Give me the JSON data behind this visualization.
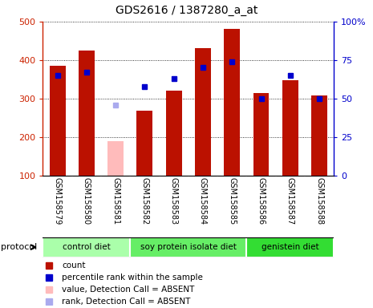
{
  "title": "GDS2616 / 1387280_a_at",
  "samples": [
    "GSM158579",
    "GSM158580",
    "GSM158581",
    "GSM158582",
    "GSM158583",
    "GSM158584",
    "GSM158585",
    "GSM158586",
    "GSM158587",
    "GSM158588"
  ],
  "counts": [
    385,
    425,
    190,
    268,
    320,
    432,
    481,
    315,
    348,
    308
  ],
  "ranks": [
    65,
    67,
    null,
    58,
    63,
    70,
    74,
    50,
    65,
    50
  ],
  "absent_count": [
    null,
    null,
    190,
    null,
    null,
    null,
    null,
    null,
    null,
    null
  ],
  "absent_rank": [
    null,
    null,
    46,
    null,
    null,
    null,
    null,
    null,
    null,
    null
  ],
  "groups": [
    {
      "label": "control diet",
      "start": 0,
      "end": 3
    },
    {
      "label": "soy protein isolate diet",
      "start": 3,
      "end": 7
    },
    {
      "label": "genistein diet",
      "start": 7,
      "end": 10
    }
  ],
  "group_colors": [
    "#aaffaa",
    "#66ee66",
    "#33dd33"
  ],
  "bar_color": "#bb1100",
  "absent_bar_color": "#ffbbbb",
  "rank_color": "#0000cc",
  "absent_rank_color": "#aaaaee",
  "ylim_left": [
    100,
    500
  ],
  "ylim_right": [
    0,
    100
  ],
  "yticks_left": [
    100,
    200,
    300,
    400,
    500
  ],
  "yticks_right": [
    0,
    25,
    50,
    75,
    100
  ],
  "yticklabels_right": [
    "0",
    "25",
    "50",
    "75",
    "100%"
  ],
  "left_axis_color": "#cc2200",
  "right_axis_color": "#0000cc",
  "legend_items": [
    {
      "color": "#bb1100",
      "label": "count",
      "marker": "s"
    },
    {
      "color": "#0000cc",
      "label": "percentile rank within the sample",
      "marker": "s"
    },
    {
      "color": "#ffbbbb",
      "label": "value, Detection Call = ABSENT",
      "marker": "s"
    },
    {
      "color": "#aaaaee",
      "label": "rank, Detection Call = ABSENT",
      "marker": "s"
    }
  ]
}
